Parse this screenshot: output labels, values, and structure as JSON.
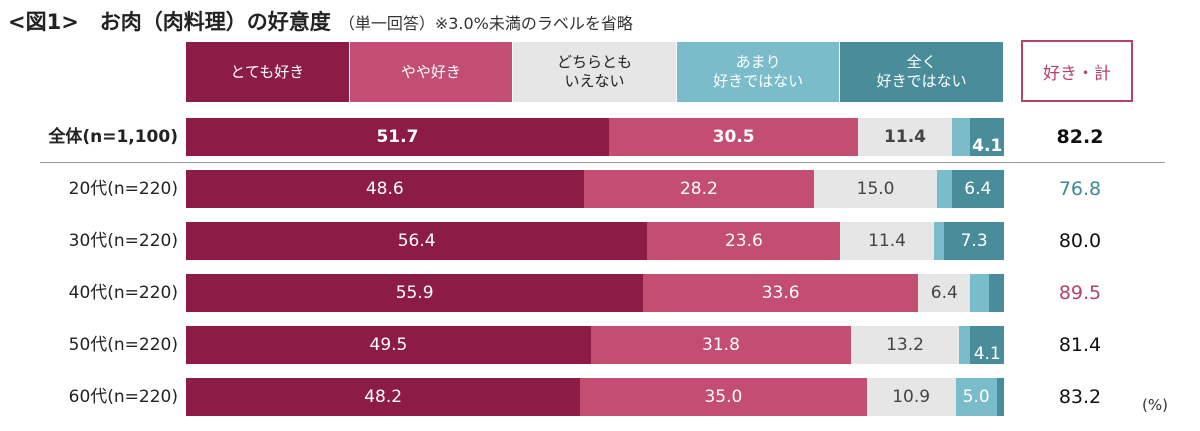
{
  "title": "<図1>　お肉（肉料理）の好意度",
  "subtitle": "（単一回答）※3.0%未満のラベルを省略",
  "like_total_header": "好き・計",
  "unit": "(%)",
  "colors": {
    "very_like": "#8c1c46",
    "somewhat_like": "#c44d72",
    "neutral": "#e6e6e6",
    "somewhat_dislike": "#7bbccb",
    "dislike": "#4a8d9a",
    "like_high": "#b5426a",
    "like_low": "#3f8a93"
  },
  "chart_data": {
    "type": "bar",
    "orientation": "horizontal",
    "stacked": true,
    "xlim": [
      0,
      100
    ],
    "label_threshold": 3.0,
    "categories": [
      "全体(n=1,100)",
      "20代(n=220)",
      "30代(n=220)",
      "40代(n=220)",
      "50代(n=220)",
      "60代(n=220)"
    ],
    "series": [
      {
        "name": "とても好き",
        "values": [
          51.7,
          48.6,
          56.4,
          55.9,
          49.5,
          48.2
        ]
      },
      {
        "name": "やや好き",
        "values": [
          30.5,
          28.2,
          23.6,
          33.6,
          31.8,
          35.0
        ]
      },
      {
        "name": "どちらとも\nいえない",
        "values": [
          11.4,
          15.0,
          11.4,
          6.4,
          13.2,
          10.9
        ]
      },
      {
        "name": "あまり\n好きではない",
        "values": [
          2.3,
          1.8,
          1.3,
          2.3,
          1.4,
          5.0
        ]
      },
      {
        "name": "全く\n好きではない",
        "values": [
          4.1,
          6.4,
          7.3,
          1.8,
          4.1,
          0.9
        ]
      }
    ],
    "like_totals": [
      "82.2",
      "76.8",
      "80.0",
      "89.5",
      "81.4",
      "83.2"
    ],
    "like_total_highlight": [
      "none",
      "low",
      "none",
      "high",
      "none",
      "none"
    ]
  }
}
